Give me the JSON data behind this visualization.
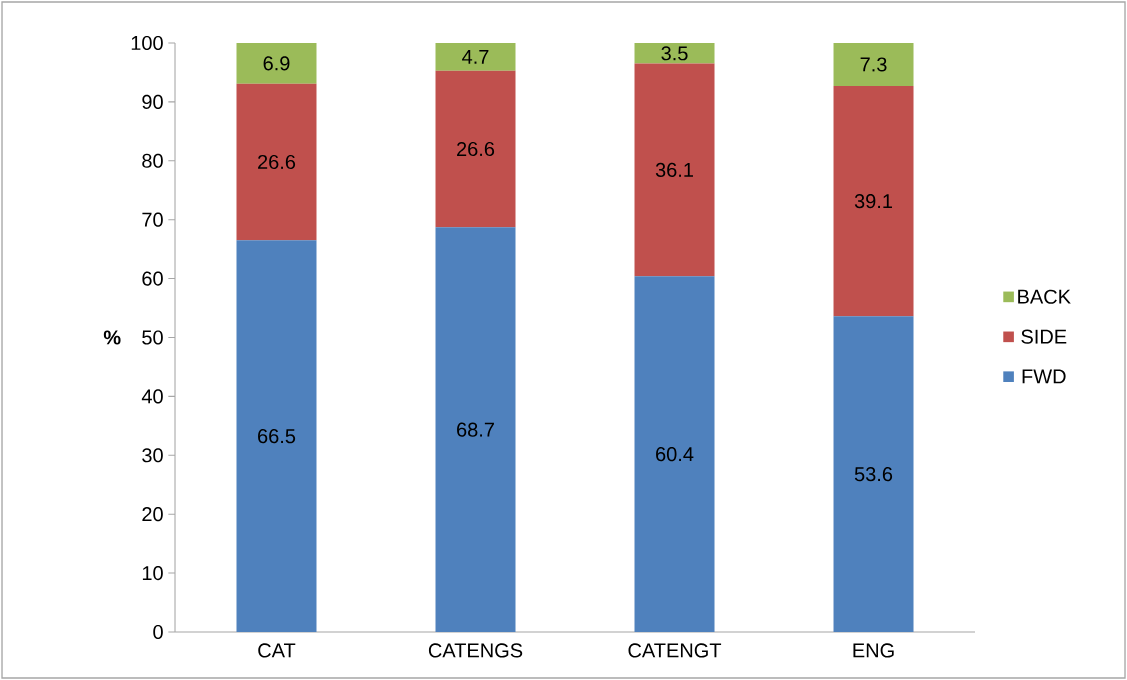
{
  "chart_data": {
    "type": "bar",
    "stacked": true,
    "ylabel": "%",
    "categories": [
      "CAT",
      "CATENGS",
      "CATENGT",
      "ENG"
    ],
    "series": [
      {
        "name": "FWD",
        "color": "#4f81bd",
        "values": [
          66.5,
          68.7,
          60.4,
          53.6
        ]
      },
      {
        "name": "SIDE",
        "color": "#c0504d",
        "values": [
          26.6,
          26.6,
          36.1,
          39.1
        ]
      },
      {
        "name": "BACK",
        "color": "#9bbb59",
        "values": [
          6.9,
          4.7,
          3.5,
          7.3
        ]
      }
    ],
    "ylim": [
      0,
      100
    ],
    "yticks": [
      0,
      10,
      20,
      30,
      40,
      50,
      60,
      70,
      80,
      90,
      100
    ],
    "data_labels": true,
    "legend": "right",
    "grid": false
  }
}
